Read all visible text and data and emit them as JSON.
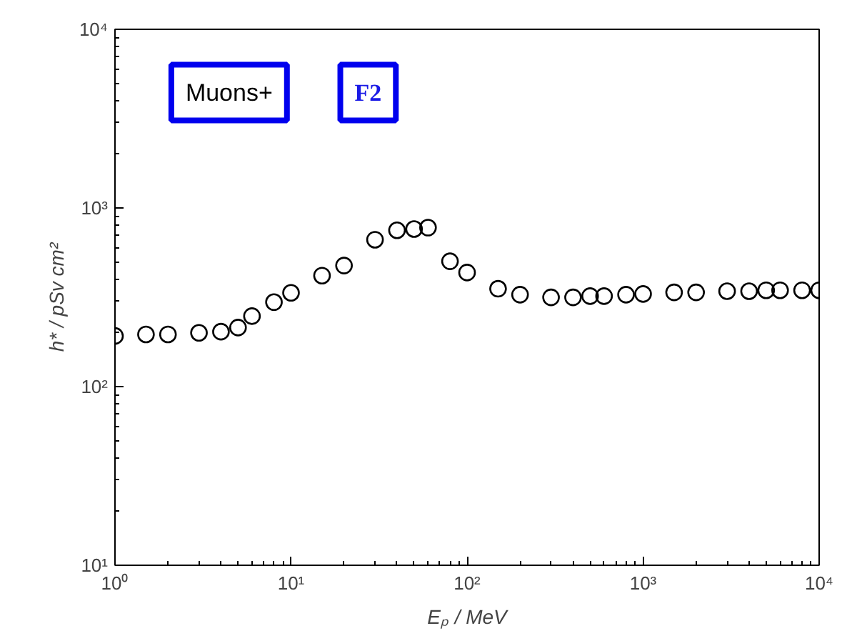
{
  "chart_data": {
    "type": "scatter",
    "xlabel": "Eₚ / MeV",
    "ylabel": "h* / pSv cm²",
    "log": "xy",
    "grid": false,
    "marker": "circle",
    "annotations": [
      "Muons+",
      "F2"
    ],
    "xlim": [
      1,
      10000
    ],
    "ylim": [
      10,
      10000
    ],
    "xticks": [
      {
        "value": 1,
        "label": "10⁰"
      },
      {
        "value": 10,
        "label": "10¹"
      },
      {
        "value": 100,
        "label": "10²"
      },
      {
        "value": 1000,
        "label": "10³"
      },
      {
        "value": 10000,
        "label": "10⁴"
      }
    ],
    "yticks": [
      {
        "value": 10,
        "label": "10¹"
      },
      {
        "value": 100,
        "label": "10²"
      },
      {
        "value": 1000,
        "label": "10³"
      },
      {
        "value": 10000,
        "label": "10⁴"
      }
    ],
    "x": [
      1,
      1.5,
      2,
      3,
      4,
      5,
      6,
      8,
      10,
      15,
      20,
      30,
      40,
      50,
      60,
      80,
      100,
      150,
      200,
      300,
      400,
      500,
      600,
      800,
      1000,
      1500,
      2000,
      3000,
      4000,
      5000,
      6000,
      8000,
      10000
    ],
    "series": [
      {
        "color": "#000000",
        "values": [
          192,
          196,
          196,
          200,
          203,
          214,
          248,
          297,
          335,
          418,
          476,
          664,
          750,
          762,
          776,
          503,
          435,
          353,
          327,
          316,
          316,
          321,
          321,
          327,
          330,
          337,
          337,
          342,
          342,
          346,
          346,
          346,
          346
        ]
      }
    ]
  }
}
